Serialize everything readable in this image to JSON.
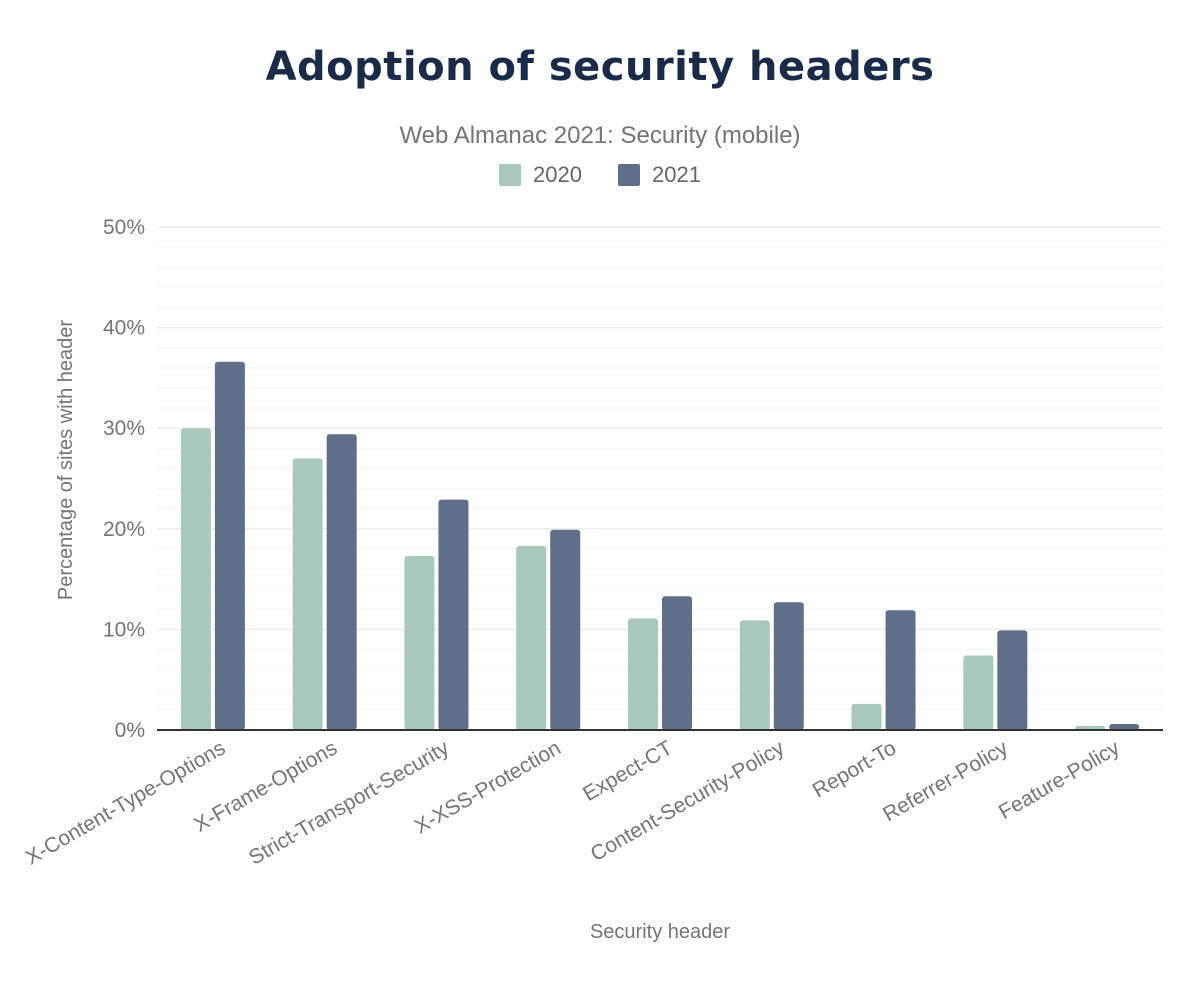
{
  "chart_data": {
    "type": "bar",
    "title": "Adoption of security headers",
    "subtitle": "Web Almanac 2021: Security (mobile)",
    "xlabel": "Security header",
    "ylabel": "Percentage of sites with header",
    "ylim": [
      0,
      50
    ],
    "yticks": [
      "0%",
      "10%",
      "20%",
      "30%",
      "40%",
      "50%"
    ],
    "grid": true,
    "legend_placement": "top-center",
    "categories": [
      "X-Content-Type-Options",
      "X-Frame-Options",
      "Strict-Transport-Security",
      "X-XSS-Protection",
      "Expect-CT",
      "Content-Security-Policy",
      "Report-To",
      "Referrer-Policy",
      "Feature-Policy"
    ],
    "series": [
      {
        "name": "2020",
        "color": "#a8c8b9",
        "values": [
          30.0,
          27.0,
          17.3,
          18.3,
          11.1,
          10.9,
          2.6,
          7.4,
          0.4
        ]
      },
      {
        "name": "2021",
        "color": "#5f6f8a",
        "values": [
          36.6,
          29.4,
          22.9,
          19.9,
          13.3,
          12.7,
          11.9,
          9.9,
          0.6
        ]
      }
    ]
  }
}
